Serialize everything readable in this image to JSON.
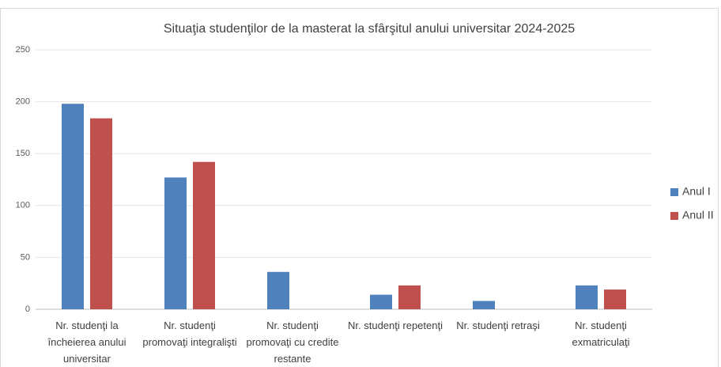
{
  "chart_data": {
    "type": "bar",
    "title": "Situaţia studenţilor de la masterat la sfârşitul anului universitar 2024-2025",
    "categories": [
      "Nr. studenţi la încheierea anului universitar",
      "Nr. studenţi promovaţi integralişti",
      "Nr. studenţi promovaţi cu credite restante",
      "Nr. studenţi repetenţi",
      "Nr. studenţi retraşi",
      "Nr. studenţi exmatriculaţi"
    ],
    "series": [
      {
        "name": "Anul I",
        "color": "#4f81bd",
        "values": [
          198,
          127,
          36,
          14,
          8,
          23
        ]
      },
      {
        "name": "Anul II",
        "color": "#c0504d",
        "values": [
          184,
          142,
          null,
          23,
          null,
          19
        ]
      }
    ],
    "ylim": [
      0,
      250
    ],
    "yticks": [
      0,
      50,
      100,
      150,
      200,
      250
    ],
    "grid": true,
    "legend": "right"
  }
}
